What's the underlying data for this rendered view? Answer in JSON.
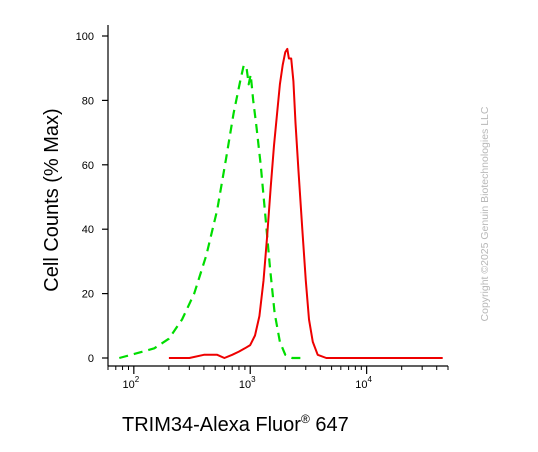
{
  "chart_data": {
    "type": "line",
    "ylabel": "Cell Counts (% Max)",
    "xlabel_main": "TRIM34-Alexa Fluor",
    "xlabel_sup": "®",
    "xlabel_tail": "647",
    "xscale": "log",
    "xlim": [
      60,
      50000
    ],
    "ylim": [
      0,
      105
    ],
    "yticks": [
      0,
      20,
      40,
      60,
      80,
      100
    ],
    "xticks": [
      {
        "value": 100,
        "base": "10",
        "exp": "2"
      },
      {
        "value": 1000,
        "base": "10",
        "exp": "3"
      },
      {
        "value": 10000,
        "base": "10",
        "exp": "4"
      }
    ],
    "series": [
      {
        "color": "#00dd00",
        "dash": "dashed",
        "points": [
          [
            75,
            0
          ],
          [
            95,
            1
          ],
          [
            120,
            2
          ],
          [
            150,
            3
          ],
          [
            200,
            6
          ],
          [
            260,
            12
          ],
          [
            330,
            20
          ],
          [
            420,
            32
          ],
          [
            520,
            46
          ],
          [
            620,
            62
          ],
          [
            720,
            76
          ],
          [
            820,
            86
          ],
          [
            880,
            91
          ],
          [
            930,
            90
          ],
          [
            970,
            85
          ],
          [
            1010,
            88
          ],
          [
            1060,
            80
          ],
          [
            1130,
            72
          ],
          [
            1230,
            60
          ],
          [
            1350,
            44
          ],
          [
            1480,
            28
          ],
          [
            1620,
            14
          ],
          [
            1800,
            5
          ],
          [
            2000,
            1
          ],
          [
            2300,
            0
          ],
          [
            2800,
            0
          ]
        ]
      },
      {
        "color": "#ee0000",
        "dash": "solid",
        "points": [
          [
            200,
            0
          ],
          [
            300,
            0
          ],
          [
            400,
            1
          ],
          [
            520,
            1
          ],
          [
            600,
            0
          ],
          [
            700,
            1
          ],
          [
            800,
            2
          ],
          [
            900,
            3
          ],
          [
            1000,
            4
          ],
          [
            1100,
            7
          ],
          [
            1200,
            13
          ],
          [
            1300,
            24
          ],
          [
            1400,
            38
          ],
          [
            1500,
            53
          ],
          [
            1600,
            66
          ],
          [
            1700,
            76
          ],
          [
            1800,
            85
          ],
          [
            1900,
            91
          ],
          [
            2000,
            95
          ],
          [
            2080,
            96
          ],
          [
            2150,
            93
          ],
          [
            2250,
            93
          ],
          [
            2350,
            86
          ],
          [
            2450,
            73
          ],
          [
            2600,
            58
          ],
          [
            2800,
            40
          ],
          [
            3000,
            24
          ],
          [
            3200,
            12
          ],
          [
            3450,
            5
          ],
          [
            3800,
            1
          ],
          [
            4500,
            0
          ],
          [
            8000,
            0
          ],
          [
            20000,
            0
          ],
          [
            45000,
            0
          ]
        ]
      }
    ]
  },
  "watermark": "Copyright ©2025 Genuin Biotechnologies LLC"
}
